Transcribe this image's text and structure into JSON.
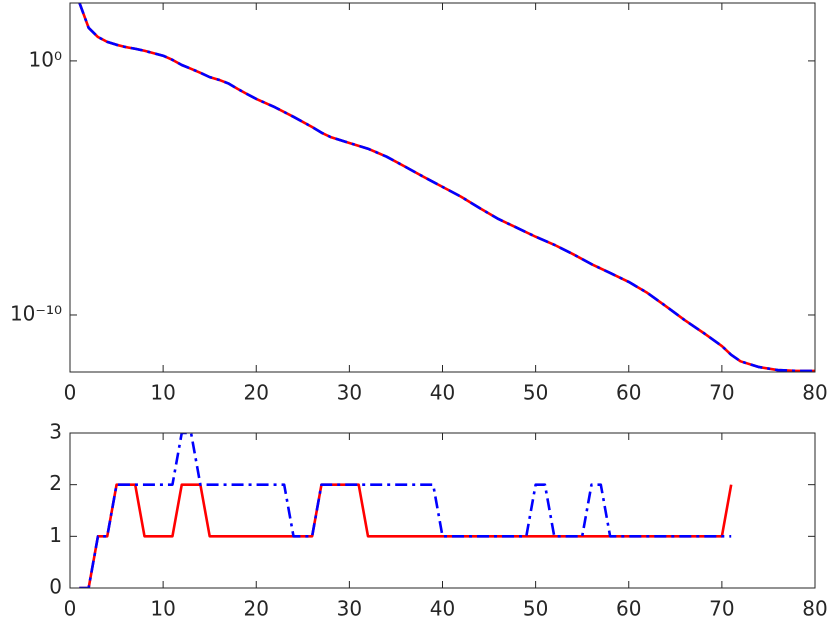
{
  "chart_data": [
    {
      "type": "line",
      "yscale": "log",
      "grid": false,
      "xlim": [
        0,
        80
      ],
      "xticks": [
        0,
        10,
        20,
        30,
        40,
        50,
        60,
        70,
        80
      ],
      "ylim": [
        5.7e-13,
        190
      ],
      "yticks": [
        {
          "value": 1,
          "label": "10⁰"
        },
        {
          "value": 1e-10,
          "label": "10⁻¹⁰"
        }
      ],
      "x": [
        1,
        2,
        3,
        4,
        5,
        6,
        7,
        8,
        9,
        10,
        11,
        12,
        13,
        14,
        15,
        16,
        17,
        18,
        19,
        20,
        22,
        24,
        26,
        27,
        28,
        30,
        32,
        34,
        36,
        38,
        40,
        42,
        44,
        46,
        48,
        50,
        52,
        54,
        56,
        58,
        60,
        62,
        64,
        66,
        68,
        70,
        71,
        72,
        74,
        76,
        78,
        80
      ],
      "series": [
        {
          "color": "#ff0000",
          "linestyle": "solid",
          "values": [
            200,
            20,
            8.7,
            5.6,
            4.3,
            3.5,
            3.0,
            2.5,
            2.0,
            1.6,
            1.1,
            0.69,
            0.49,
            0.34,
            0.23,
            0.18,
            0.13,
            0.079,
            0.05,
            0.032,
            0.015,
            0.0063,
            0.0025,
            0.0015,
            0.001,
            0.00059,
            0.00035,
            0.00017,
            6.8e-05,
            2.7e-05,
            1.1e-05,
            4.5e-06,
            1.6e-06,
            6e-07,
            2.7e-07,
            1.2e-07,
            5.8e-08,
            2.5e-08,
            1e-08,
            4.5e-09,
            2e-09,
            7.4e-10,
            2.2e-10,
            6.3e-11,
            2e-11,
            6e-12,
            2.7e-12,
            1.5e-12,
            8.9e-13,
            6.8e-13,
            6.3e-13,
            6.3e-13
          ]
        },
        {
          "color": "#0000ff",
          "linestyle": "dash-dot",
          "values": [
            200,
            20,
            8.7,
            5.6,
            4.3,
            3.5,
            3.0,
            2.5,
            2.0,
            1.6,
            1.1,
            0.69,
            0.49,
            0.34,
            0.23,
            0.18,
            0.13,
            0.079,
            0.05,
            0.032,
            0.015,
            0.0063,
            0.0025,
            0.0015,
            0.001,
            0.00059,
            0.00035,
            0.00017,
            6.8e-05,
            2.7e-05,
            1.1e-05,
            4.5e-06,
            1.6e-06,
            6e-07,
            2.7e-07,
            1.2e-07,
            5.8e-08,
            2.5e-08,
            1e-08,
            4.5e-09,
            2e-09,
            7.4e-10,
            2.2e-10,
            6.3e-11,
            2e-11,
            6e-12,
            2.7e-12,
            1.5e-12,
            8.9e-13,
            6.8e-13,
            6.3e-13,
            6.3e-13
          ]
        }
      ]
    },
    {
      "type": "line",
      "yscale": "linear",
      "grid": false,
      "xlim": [
        0,
        80
      ],
      "xticks": [
        0,
        10,
        20,
        30,
        40,
        50,
        60,
        70,
        80
      ],
      "ylim": [
        0,
        3
      ],
      "yticks": [
        0,
        1,
        2,
        3
      ],
      "x": [
        1,
        2,
        3,
        4,
        5,
        6,
        7,
        8,
        9,
        10,
        11,
        12,
        13,
        14,
        15,
        16,
        17,
        18,
        19,
        20,
        21,
        22,
        23,
        24,
        25,
        26,
        27,
        28,
        29,
        30,
        31,
        32,
        33,
        34,
        35,
        36,
        37,
        38,
        39,
        40,
        41,
        42,
        43,
        44,
        45,
        46,
        47,
        48,
        49,
        50,
        51,
        52,
        53,
        54,
        55,
        56,
        57,
        58,
        59,
        60,
        61,
        62,
        63,
        64,
        65,
        66,
        67,
        68,
        69,
        70,
        71
      ],
      "series": [
        {
          "color": "#ff0000",
          "linestyle": "solid",
          "values": [
            0,
            0,
            1,
            1,
            2,
            2,
            2,
            1,
            1,
            1,
            1,
            2,
            2,
            2,
            1,
            1,
            1,
            1,
            1,
            1,
            1,
            1,
            1,
            1,
            1,
            1,
            2,
            2,
            2,
            2,
            2,
            1,
            1,
            1,
            1,
            1,
            1,
            1,
            1,
            1,
            1,
            1,
            1,
            1,
            1,
            1,
            1,
            1,
            1,
            1,
            1,
            1,
            1,
            1,
            1,
            1,
            1,
            1,
            1,
            1,
            1,
            1,
            1,
            1,
            1,
            1,
            1,
            1,
            1,
            1,
            2
          ]
        },
        {
          "color": "#0000ff",
          "linestyle": "dash-dot",
          "values": [
            0,
            0,
            1,
            1,
            2,
            2,
            2,
            2,
            2,
            2,
            2,
            3,
            3,
            2,
            2,
            2,
            2,
            2,
            2,
            2,
            2,
            2,
            2,
            1,
            1,
            1,
            2,
            2,
            2,
            2,
            2,
            2,
            2,
            2,
            2,
            2,
            2,
            2,
            2,
            1,
            1,
            1,
            1,
            1,
            1,
            1,
            1,
            1,
            1,
            2,
            2,
            1,
            1,
            1,
            1,
            2,
            2,
            1,
            1,
            1,
            1,
            1,
            1,
            1,
            1,
            1,
            1,
            1,
            1,
            1,
            1
          ]
        }
      ]
    }
  ]
}
